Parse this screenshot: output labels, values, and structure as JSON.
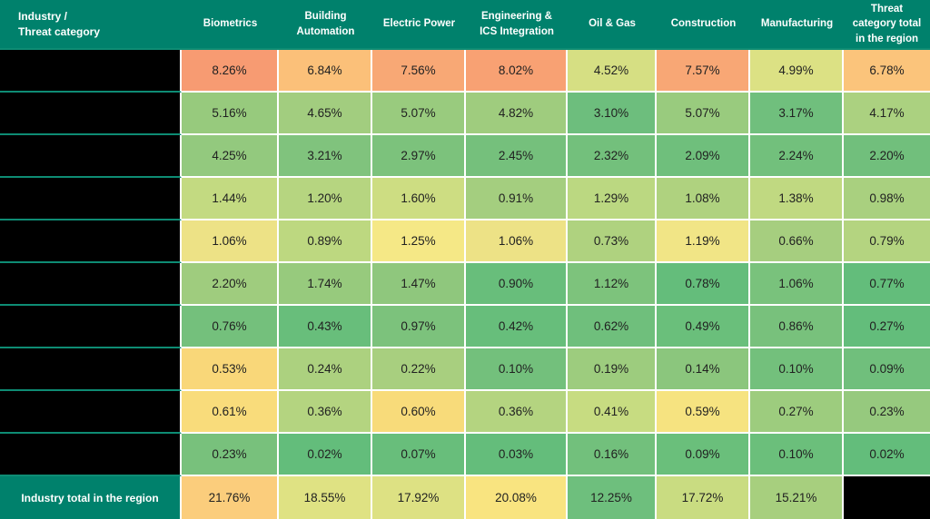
{
  "header": {
    "corner_line1": "Industry /",
    "corner_line2": "Threat category"
  },
  "colors": {
    "header_bg": "#00816C",
    "header_text": "#FFFFFF",
    "teal_line": "#0E8C74",
    "grid_line": "#FFFFFF",
    "redacted_bg": "#000000",
    "cell_text": "#212121"
  },
  "chart_data": {
    "type": "heatmap",
    "title": "Industry / Threat category",
    "columns": [
      "Biometrics",
      "Building Automation",
      "Electric Power",
      "Engineering & ICS Integration",
      "Oil & Gas",
      "Construction",
      "Manufacturing",
      "Threat category total in the region"
    ],
    "row_labels_redacted": true,
    "rows": [
      {
        "label": "",
        "redacted": true,
        "cells": [
          {
            "v": 8.26,
            "text": "8.26%",
            "bg": "#F79B72"
          },
          {
            "v": 6.84,
            "text": "6.84%",
            "bg": "#FBC079"
          },
          {
            "v": 7.56,
            "text": "7.56%",
            "bg": "#F8A875"
          },
          {
            "v": 8.02,
            "text": "8.02%",
            "bg": "#F8A173"
          },
          {
            "v": 4.52,
            "text": "4.52%",
            "bg": "#D6DF83"
          },
          {
            "v": 7.57,
            "text": "7.57%",
            "bg": "#F8A775"
          },
          {
            "v": 4.99,
            "text": "4.99%",
            "bg": "#DCE184"
          },
          {
            "v": 6.78,
            "text": "6.78%",
            "bg": "#FBC47B"
          }
        ]
      },
      {
        "label": "",
        "redacted": true,
        "cells": [
          {
            "v": 5.16,
            "text": "5.16%",
            "bg": "#97CA7D"
          },
          {
            "v": 4.65,
            "text": "4.65%",
            "bg": "#A2CD7F"
          },
          {
            "v": 5.07,
            "text": "5.07%",
            "bg": "#99CB7E"
          },
          {
            "v": 4.82,
            "text": "4.82%",
            "bg": "#9FCC7E"
          },
          {
            "v": 3.1,
            "text": "3.10%",
            "bg": "#6DBE7D"
          },
          {
            "v": 5.07,
            "text": "5.07%",
            "bg": "#99CB7E"
          },
          {
            "v": 3.17,
            "text": "3.17%",
            "bg": "#70BF7D"
          },
          {
            "v": 4.17,
            "text": "4.17%",
            "bg": "#ABD180"
          }
        ]
      },
      {
        "label": "",
        "redacted": true,
        "cells": [
          {
            "v": 4.25,
            "text": "4.25%",
            "bg": "#93C97E"
          },
          {
            "v": 3.21,
            "text": "3.21%",
            "bg": "#80C37D"
          },
          {
            "v": 2.97,
            "text": "2.97%",
            "bg": "#7CC27C"
          },
          {
            "v": 2.45,
            "text": "2.45%",
            "bg": "#75C07C"
          },
          {
            "v": 2.32,
            "text": "2.32%",
            "bg": "#73C07C"
          },
          {
            "v": 2.09,
            "text": "2.09%",
            "bg": "#6FBF7C"
          },
          {
            "v": 2.24,
            "text": "2.24%",
            "bg": "#72C07C"
          },
          {
            "v": 2.2,
            "text": "2.20%",
            "bg": "#71BF7C"
          }
        ]
      },
      {
        "label": "",
        "redacted": true,
        "cells": [
          {
            "v": 1.44,
            "text": "1.44%",
            "bg": "#C3DA81"
          },
          {
            "v": 1.2,
            "text": "1.20%",
            "bg": "#B6D580"
          },
          {
            "v": 1.6,
            "text": "1.60%",
            "bg": "#CDDD82"
          },
          {
            "v": 0.91,
            "text": "0.91%",
            "bg": "#A4CE7F"
          },
          {
            "v": 1.29,
            "text": "1.29%",
            "bg": "#BBD881"
          },
          {
            "v": 1.08,
            "text": "1.08%",
            "bg": "#AFD27F"
          },
          {
            "v": 1.38,
            "text": "1.38%",
            "bg": "#C0D981"
          },
          {
            "v": 0.98,
            "text": "0.98%",
            "bg": "#A9D07F"
          }
        ]
      },
      {
        "label": "",
        "redacted": true,
        "cells": [
          {
            "v": 1.06,
            "text": "1.06%",
            "bg": "#EDE286"
          },
          {
            "v": 0.89,
            "text": "0.89%",
            "bg": "#BDD880"
          },
          {
            "v": 1.25,
            "text": "1.25%",
            "bg": "#F5E886"
          },
          {
            "v": 1.06,
            "text": "1.06%",
            "bg": "#EDE286"
          },
          {
            "v": 0.73,
            "text": "0.73%",
            "bg": "#AFD27F"
          },
          {
            "v": 1.19,
            "text": "1.19%",
            "bg": "#F1E586"
          },
          {
            "v": 0.66,
            "text": "0.66%",
            "bg": "#A6CE7F"
          },
          {
            "v": 0.79,
            "text": "0.79%",
            "bg": "#B4D480"
          }
        ]
      },
      {
        "label": "",
        "redacted": true,
        "cells": [
          {
            "v": 2.2,
            "text": "2.20%",
            "bg": "#9FCC7E"
          },
          {
            "v": 1.74,
            "text": "1.74%",
            "bg": "#97CA7D"
          },
          {
            "v": 1.47,
            "text": "1.47%",
            "bg": "#8FC77D"
          },
          {
            "v": 0.9,
            "text": "0.90%",
            "bg": "#68BE7B"
          },
          {
            "v": 1.12,
            "text": "1.12%",
            "bg": "#7DC37C"
          },
          {
            "v": 0.78,
            "text": "0.78%",
            "bg": "#64BD7B"
          },
          {
            "v": 1.06,
            "text": "1.06%",
            "bg": "#79C27C"
          },
          {
            "v": 0.77,
            "text": "0.77%",
            "bg": "#63BD7B"
          }
        ]
      },
      {
        "label": "",
        "redacted": true,
        "cells": [
          {
            "v": 0.76,
            "text": "0.76%",
            "bg": "#74C07C"
          },
          {
            "v": 0.43,
            "text": "0.43%",
            "bg": "#68BE7B"
          },
          {
            "v": 0.97,
            "text": "0.97%",
            "bg": "#7CC27C"
          },
          {
            "v": 0.42,
            "text": "0.42%",
            "bg": "#67BE7B"
          },
          {
            "v": 0.62,
            "text": "0.62%",
            "bg": "#6FBF7C"
          },
          {
            "v": 0.49,
            "text": "0.49%",
            "bg": "#6ABF7B"
          },
          {
            "v": 0.86,
            "text": "0.86%",
            "bg": "#78C17C"
          },
          {
            "v": 0.27,
            "text": "0.27%",
            "bg": "#63BD7B"
          }
        ]
      },
      {
        "label": "",
        "redacted": true,
        "cells": [
          {
            "v": 0.53,
            "text": "0.53%",
            "bg": "#F9D779"
          },
          {
            "v": 0.24,
            "text": "0.24%",
            "bg": "#ACD17F"
          },
          {
            "v": 0.22,
            "text": "0.22%",
            "bg": "#A8CF7F"
          },
          {
            "v": 0.1,
            "text": "0.10%",
            "bg": "#73C07C"
          },
          {
            "v": 0.19,
            "text": "0.19%",
            "bg": "#9DCC7E"
          },
          {
            "v": 0.14,
            "text": "0.14%",
            "bg": "#8BC67D"
          },
          {
            "v": 0.1,
            "text": "0.10%",
            "bg": "#73C07C"
          },
          {
            "v": 0.09,
            "text": "0.09%",
            "bg": "#70BF7C"
          }
        ]
      },
      {
        "label": "",
        "redacted": true,
        "cells": [
          {
            "v": 0.61,
            "text": "0.61%",
            "bg": "#F9DC7B"
          },
          {
            "v": 0.36,
            "text": "0.36%",
            "bg": "#B4D480"
          },
          {
            "v": 0.6,
            "text": "0.60%",
            "bg": "#F8DB7A"
          },
          {
            "v": 0.36,
            "text": "0.36%",
            "bg": "#B4D480"
          },
          {
            "v": 0.41,
            "text": "0.41%",
            "bg": "#C7DC81"
          },
          {
            "v": 0.59,
            "text": "0.59%",
            "bg": "#F6E380"
          },
          {
            "v": 0.27,
            "text": "0.27%",
            "bg": "#9DCC7E"
          },
          {
            "v": 0.23,
            "text": "0.23%",
            "bg": "#96C97E"
          }
        ]
      },
      {
        "label": "",
        "redacted": true,
        "cells": [
          {
            "v": 0.23,
            "text": "0.23%",
            "bg": "#78C17C"
          },
          {
            "v": 0.02,
            "text": "0.02%",
            "bg": "#63BD7B"
          },
          {
            "v": 0.07,
            "text": "0.07%",
            "bg": "#68BE7B"
          },
          {
            "v": 0.03,
            "text": "0.03%",
            "bg": "#64BD7B"
          },
          {
            "v": 0.16,
            "text": "0.16%",
            "bg": "#72C07C"
          },
          {
            "v": 0.09,
            "text": "0.09%",
            "bg": "#6ABF7B"
          },
          {
            "v": 0.1,
            "text": "0.10%",
            "bg": "#6BBF7B"
          },
          {
            "v": 0.02,
            "text": "0.02%",
            "bg": "#63BD7B"
          }
        ]
      },
      {
        "label": "Industry total in the region",
        "total": true,
        "cells": [
          {
            "v": 21.76,
            "text": "21.76%",
            "bg": "#FBCD7C"
          },
          {
            "v": 18.55,
            "text": "18.55%",
            "bg": "#DFE283"
          },
          {
            "v": 17.92,
            "text": "17.92%",
            "bg": "#DDE183"
          },
          {
            "v": 20.08,
            "text": "20.08%",
            "bg": "#F9E480"
          },
          {
            "v": 12.25,
            "text": "12.25%",
            "bg": "#6EBF7D"
          },
          {
            "v": 17.72,
            "text": "17.72%",
            "bg": "#C9DC81"
          },
          {
            "v": 15.21,
            "text": "15.21%",
            "bg": "#A7CF7E"
          },
          {
            "v": null,
            "text": "",
            "bg": "#000000",
            "redacted": true
          }
        ]
      }
    ]
  }
}
